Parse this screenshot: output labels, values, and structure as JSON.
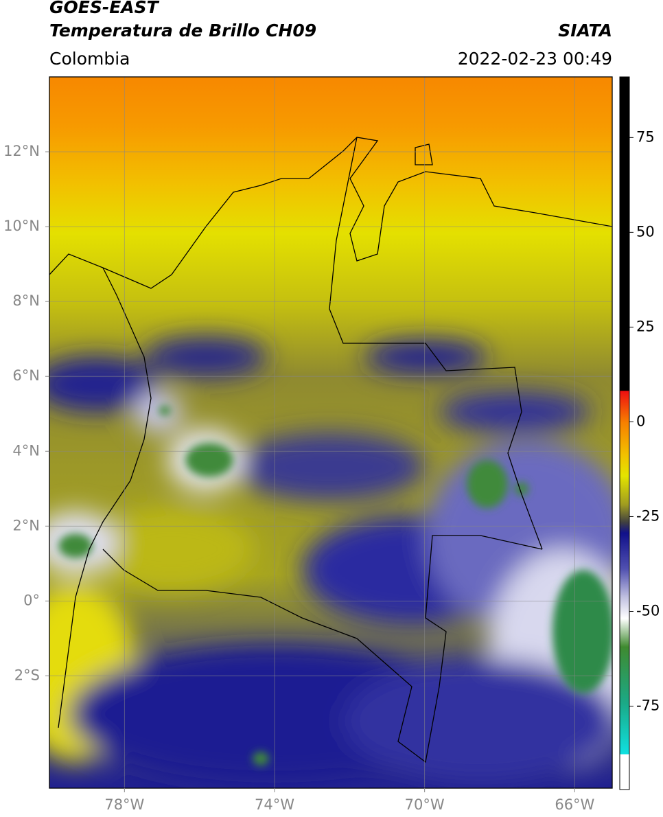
{
  "header": {
    "title": "GOES-EAST",
    "subtitle": "Temperatura de Brillo CH09",
    "credit": "SIATA",
    "region": "Colombia",
    "datetime": "2022-02-23 00:49"
  },
  "map": {
    "lon_range": [
      -80,
      -65
    ],
    "lat_range": [
      -5,
      14
    ],
    "grid": true,
    "lon_ticks": [
      {
        "value": -78,
        "label": "78°W"
      },
      {
        "value": -74,
        "label": "74°W"
      },
      {
        "value": -70,
        "label": "70°W"
      },
      {
        "value": -66,
        "label": "66°W"
      }
    ],
    "lat_ticks": [
      {
        "value": 12,
        "label": "12°N"
      },
      {
        "value": 10,
        "label": "10°N"
      },
      {
        "value": 8,
        "label": "8°N"
      },
      {
        "value": 6,
        "label": "6°N"
      },
      {
        "value": 4,
        "label": "4°N"
      },
      {
        "value": 2,
        "label": "2°N"
      },
      {
        "value": 0,
        "label": "0°"
      },
      {
        "value": -2,
        "label": "2°S"
      }
    ]
  },
  "colorbar": {
    "range": [
      -97,
      91
    ],
    "ticks": [
      75,
      50,
      25,
      0,
      -25,
      -50,
      -75
    ]
  }
}
